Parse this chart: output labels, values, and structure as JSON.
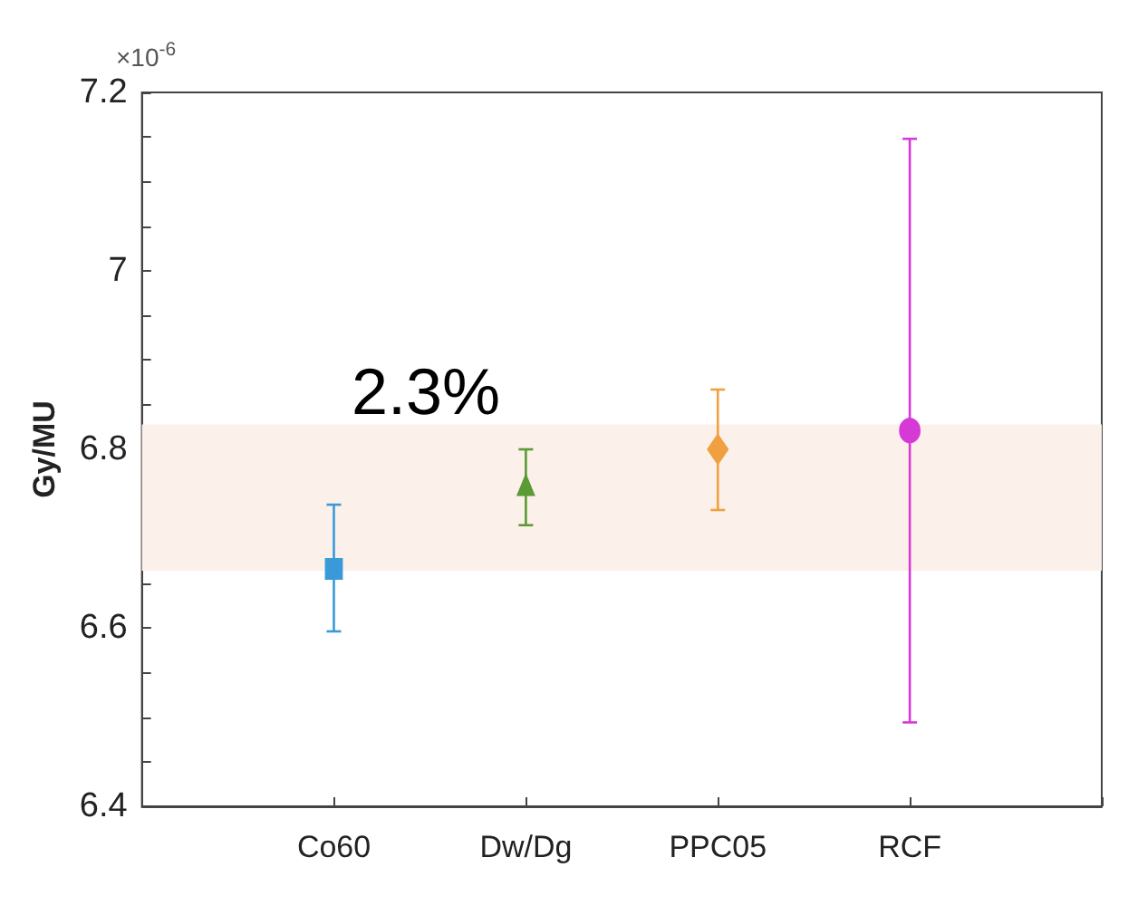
{
  "chart_data": {
    "type": "scatter",
    "ylabel": "Gy/MU",
    "categories": [
      null,
      "Co60",
      "Dw/Dg",
      "PPC05",
      "RCF",
      null
    ],
    "series": [
      {
        "color": "#3a9ad9",
        "marker": "square",
        "values": [
          null,
          6.666,
          null,
          null,
          null,
          null
        ],
        "errors": [
          null,
          [
            6.596,
            6.738
          ],
          null,
          null,
          null,
          null
        ]
      },
      {
        "color": "#5a9b33",
        "marker": "triangle",
        "values": [
          null,
          null,
          6.76,
          null,
          null,
          null
        ],
        "errors": [
          null,
          null,
          [
            6.715,
            6.8
          ],
          null,
          null,
          null
        ]
      },
      {
        "color": "#f0a040",
        "marker": "diamond",
        "values": [
          null,
          null,
          null,
          6.8,
          null,
          null
        ],
        "errors": [
          null,
          null,
          null,
          [
            6.732,
            6.867
          ],
          null,
          null
        ]
      },
      {
        "color": "#d63ad6",
        "marker": "circle",
        "values": [
          null,
          null,
          null,
          null,
          6.821,
          null
        ],
        "errors": [
          null,
          null,
          null,
          null,
          [
            6.494,
            7.148
          ],
          null
        ]
      }
    ],
    "bands": [
      {
        "axis": "y",
        "from": 6.664,
        "to": 6.828,
        "color": "#fbf0ea"
      }
    ],
    "ylim": [
      6.4,
      7.2
    ],
    "yticks": [
      6.4,
      6.6,
      6.8,
      7,
      7.2
    ],
    "annotations": [
      "2.3%",
      "×10$^{-6}$"
    ],
    "grid": false
  }
}
